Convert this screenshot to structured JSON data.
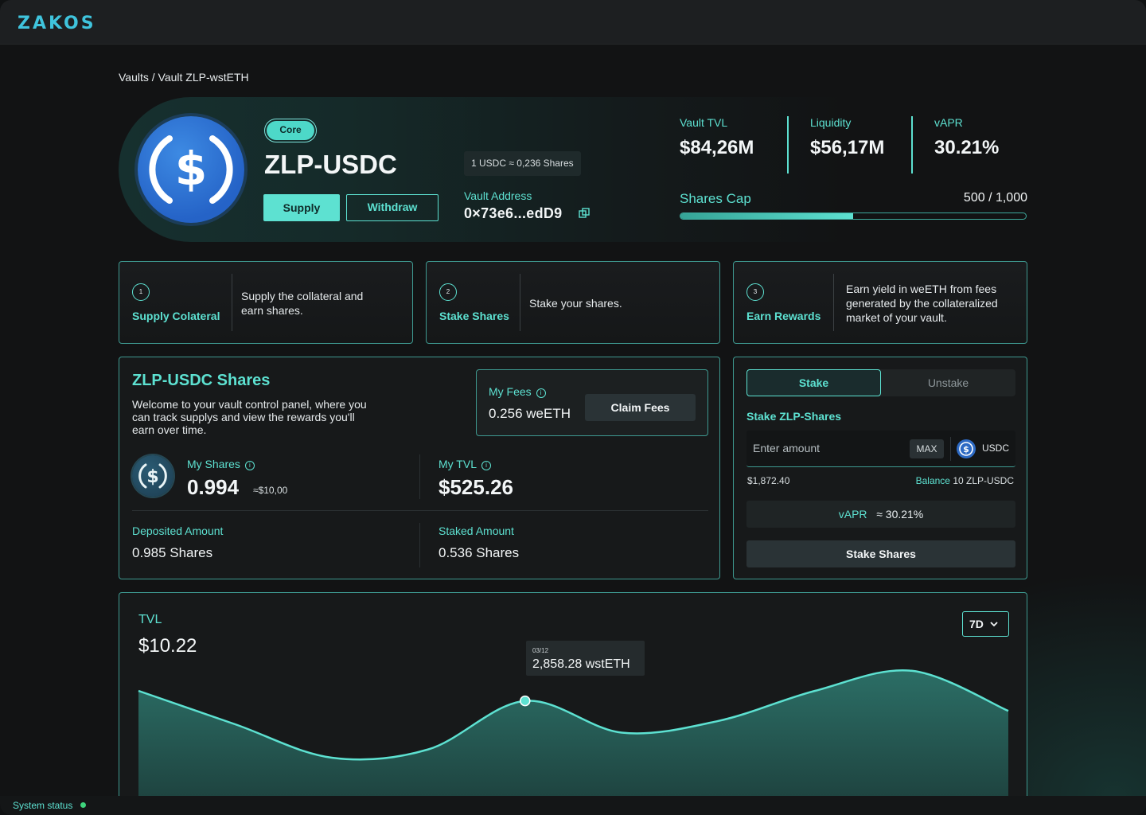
{
  "app": {
    "logo": "ZAKOS"
  },
  "breadcrumb": "Vaults / Vault ZLP-wstETH",
  "vault": {
    "badge": "Core",
    "name": "ZLP-USDC",
    "supply_label": "Supply",
    "withdraw_label": "Withdraw",
    "rate": "1 USDC ≈ 0,236 Shares",
    "address_label": "Vault Address",
    "address": "0×73e6...edD9",
    "token_icon": "usdc-coin-icon"
  },
  "stats": {
    "tvl_label": "Vault TVL",
    "tvl": "$84,26M",
    "liquidity_label": "Liquidity",
    "liquidity": "$56,17M",
    "vapr_label": "vAPR",
    "vapr": "30.21%"
  },
  "shares_cap": {
    "label": "Shares Cap",
    "value": "500 / 1,000",
    "fraction": 0.5
  },
  "steps": [
    {
      "num": "1",
      "title": "Supply Colateral",
      "desc": "Supply the collateral and earn shares."
    },
    {
      "num": "2",
      "title": "Stake Shares",
      "desc": "Stake your shares."
    },
    {
      "num": "3",
      "title": "Earn Rewards",
      "desc": "Earn yield in weETH from fees generated by the collateralized market of your vault."
    }
  ],
  "shares_panel": {
    "title": "ZLP-USDC Shares",
    "desc": "Welcome to your vault control panel, where you can track supplys and view the rewards you'll earn over time.",
    "fees_label": "My Fees",
    "fees_value": "0.256 weETH",
    "claim_label": "Claim Fees",
    "my_shares_label": "My Shares",
    "my_shares": "0.994",
    "my_shares_usd": "≈$10,00",
    "my_tvl_label": "My TVL",
    "my_tvl": "$525.26",
    "deposited_label": "Deposited Amount",
    "deposited": "0.985 Shares",
    "staked_label": "Staked Amount",
    "staked": "0.536 Shares"
  },
  "stake_panel": {
    "tab_stake": "Stake",
    "tab_unstake": "Unstake",
    "heading": "Stake ZLP-Shares",
    "placeholder": "Enter amount",
    "max_label": "MAX",
    "token": "USDC",
    "usd_value": "$1,872.40",
    "balance_label": "Balance",
    "balance": "10 ZLP-USDC",
    "vapr_label": "vAPR",
    "vapr": "≈ 30.21%",
    "stake_button": "Stake Shares"
  },
  "tvl_chart": {
    "label": "TVL",
    "value": "$10.22",
    "range": "7D",
    "tooltip_date": "03/12",
    "tooltip_value": "2,858.28 wstETH"
  },
  "chart_data": {
    "type": "area",
    "title": "TVL",
    "series": [
      {
        "values": [
          0.7,
          0.5,
          0.3,
          0.35,
          0.64,
          0.45,
          0.52,
          0.7,
          0.82,
          0.58
        ]
      }
    ],
    "highlight_index": 4
  },
  "footer": {
    "status": "System status"
  },
  "colors": {
    "accent": "#5de1d1",
    "status_ok": "#3ed47c"
  }
}
